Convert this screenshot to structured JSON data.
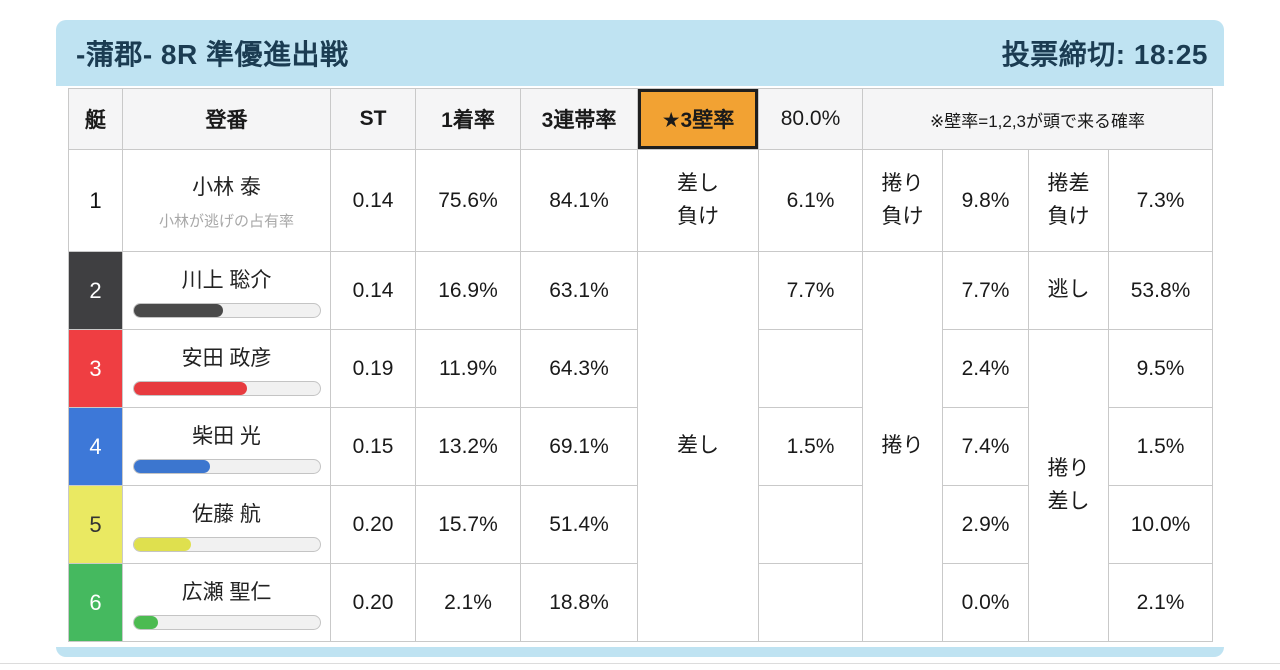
{
  "page": {
    "title": "-蒲郡- 8R 準優進出戦",
    "deadline": "投票締切: 18:25"
  },
  "colors": {
    "card_background": "#bfe3f2",
    "highlight_background": "#f2a233",
    "highlight_border": "#1f1f1f",
    "header_text": "#1b3c52"
  },
  "table": {
    "headers": {
      "boat": "艇",
      "racer": "登番",
      "st": "ST",
      "win": "1着率",
      "top3": "3連帯率",
      "wall": "★3壁率",
      "wall_value": "80.0%",
      "note": "※壁率=1,2,3が頭で来る確率"
    },
    "merged_labels": {
      "sashi": "差し",
      "makuri": "捲り",
      "makuri_sashi": "捲り\n差し"
    },
    "boat_colors": {
      "1": {
        "bg": "#ffffff",
        "fg": "#111111"
      },
      "2": {
        "bg": "#3f3f41",
        "fg": "#ffffff"
      },
      "3": {
        "bg": "#ef3e42",
        "fg": "#ffffff"
      },
      "4": {
        "bg": "#3d78d8",
        "fg": "#ffffff"
      },
      "5": {
        "bg": "#eae962",
        "fg": "#333333"
      },
      "6": {
        "bg": "#45b95f",
        "fg": "#ffffff"
      }
    },
    "rows": [
      {
        "boat": "1",
        "racer": "小林 泰",
        "subtitle": "小林が逃げの占有率",
        "st": "0.14",
        "win": "75.6%",
        "top3": "84.1%",
        "cells": {
          "sashi_label": "差し\n負け",
          "sashi": "6.1%",
          "makuri_label": "捲り\n負け",
          "makuri": "9.8%",
          "ms_label": "捲差\n負け",
          "ms": "7.3%"
        }
      },
      {
        "boat": "2",
        "racer": "川上 聡介",
        "bar": {
          "color": "#4a4a4a",
          "percent": 48
        },
        "st": "0.14",
        "win": "16.9%",
        "top3": "63.1%",
        "cells": {
          "sashi": "7.7%",
          "makuri": "7.7%",
          "ms_label": "逃し",
          "ms": "53.8%"
        }
      },
      {
        "boat": "3",
        "racer": "安田 政彦",
        "bar": {
          "color": "#e73b3f",
          "percent": 61
        },
        "st": "0.19",
        "win": "11.9%",
        "top3": "64.3%",
        "cells": {
          "sashi": "",
          "makuri": "2.4%",
          "ms": "9.5%"
        }
      },
      {
        "boat": "4",
        "racer": "柴田 光",
        "bar": {
          "color": "#3c76cf",
          "percent": 41
        },
        "st": "0.15",
        "win": "13.2%",
        "top3": "69.1%",
        "cells": {
          "sashi": "1.5%",
          "makuri": "7.4%",
          "ms": "1.5%"
        }
      },
      {
        "boat": "5",
        "racer": "佐藤 航",
        "bar": {
          "color": "#dfe04e",
          "percent": 31
        },
        "st": "0.20",
        "win": "15.7%",
        "top3": "51.4%",
        "cells": {
          "sashi": "",
          "makuri": "2.9%",
          "ms": "10.0%"
        }
      },
      {
        "boat": "6",
        "racer": "広瀬 聖仁",
        "bar": {
          "color": "#4cbb51",
          "percent": 13
        },
        "st": "0.20",
        "win": "2.1%",
        "top3": "18.8%",
        "cells": {
          "sashi": "",
          "makuri": "0.0%",
          "ms": "2.1%"
        }
      }
    ]
  }
}
